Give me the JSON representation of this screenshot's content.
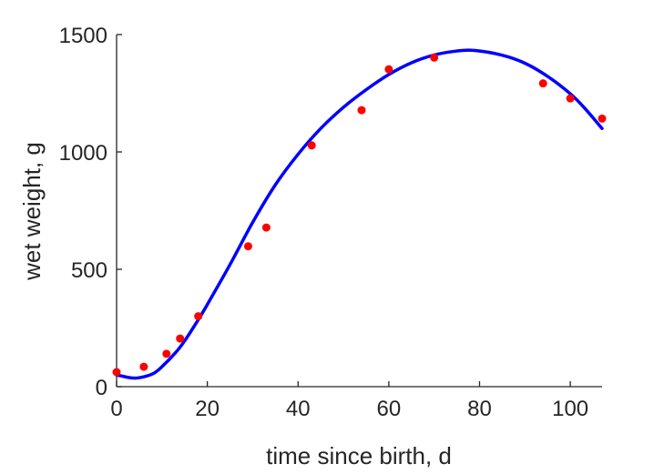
{
  "chart_data": {
    "type": "scatter",
    "title": "",
    "xlabel": "time since birth, d",
    "ylabel": "wet weight, g",
    "xlim": [
      0,
      107
    ],
    "ylim": [
      0,
      1500
    ],
    "xticks": [
      0,
      20,
      40,
      60,
      80,
      100
    ],
    "yticks": [
      0,
      500,
      1000,
      1500
    ],
    "grid": false,
    "series": [
      {
        "kind": "points",
        "color": "#ff0000",
        "x": [
          0,
          6,
          11,
          14,
          18,
          29,
          33,
          43,
          54,
          60,
          70,
          94,
          100,
          107
        ],
        "y": [
          62,
          85,
          140,
          205,
          300,
          598,
          678,
          1028,
          1178,
          1352,
          1402,
          1292,
          1228,
          1142
        ]
      },
      {
        "kind": "line",
        "color": "#0000ff",
        "x": [
          0,
          3,
          5,
          8,
          10,
          13,
          15,
          18,
          20,
          25,
          30,
          35,
          40,
          45,
          50,
          55,
          60,
          65,
          70,
          75,
          79,
          85,
          90,
          95,
          100,
          103,
          107
        ],
        "y": [
          50,
          38,
          38,
          55,
          85,
          145,
          195,
          285,
          350,
          520,
          700,
          860,
          990,
          1100,
          1190,
          1265,
          1330,
          1380,
          1413,
          1430,
          1432,
          1412,
          1378,
          1322,
          1248,
          1190,
          1100
        ]
      }
    ]
  }
}
